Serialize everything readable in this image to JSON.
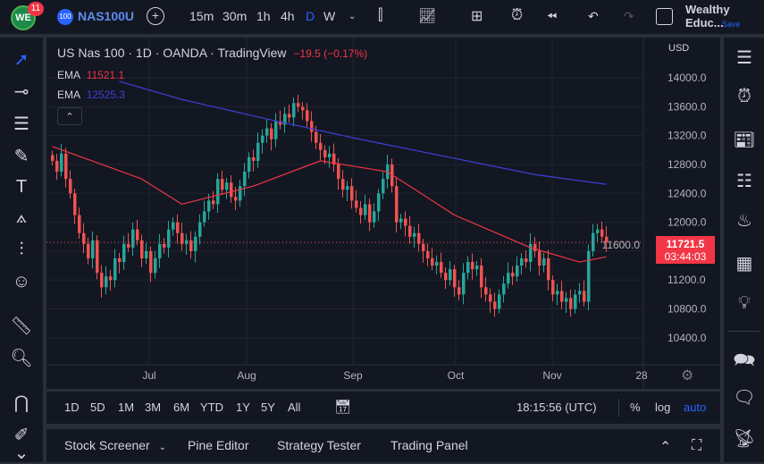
{
  "topbar": {
    "logo": "WE",
    "badge": "11",
    "symbol_icon": "100",
    "symbol": "NAS100U",
    "intervals": [
      "15m",
      "30m",
      "1h",
      "4h",
      "D",
      "W"
    ],
    "active_interval": "D",
    "layout_name": "Wealthy Educ...",
    "save": "Save"
  },
  "legend": {
    "title": "US Nas 100 · 1D · OANDA · TradingView",
    "change": "−19.5 (−0.17%)",
    "ema1_label": "EMA",
    "ema1_value": "11521.1",
    "ema2_label": "EMA",
    "ema2_value": "12525.3"
  },
  "price_axis": {
    "currency": "USD",
    "ticks": [
      "14000.0",
      "13600.0",
      "13200.0",
      "12800.0",
      "12400.0",
      "12000.0",
      "11600.0",
      "11200.0",
      "10800.0",
      "10400.0"
    ],
    "last_price": "11721.5",
    "countdown": "03:44:03"
  },
  "time_axis": {
    "labels": [
      "Jul",
      "Aug",
      "Sep",
      "Oct",
      "Nov",
      "28"
    ]
  },
  "range_bar": {
    "ranges": [
      "1D",
      "5D",
      "1M",
      "3M",
      "6M",
      "YTD",
      "1Y",
      "5Y",
      "All"
    ],
    "clock": "18:15:56 (UTC)",
    "percent": "%",
    "log": "log",
    "auto": "auto"
  },
  "bottom_tabs": [
    "Stock Screener",
    "Pine Editor",
    "Strategy Tester",
    "Trading Panel"
  ],
  "colors": {
    "up": "#26a69a",
    "down": "#ef5350",
    "ema1": "#f23645",
    "ema2": "#3f3fd8",
    "accent": "#2962ff"
  },
  "chart_data": {
    "type": "candlestick",
    "ylim": [
      10200,
      14400
    ],
    "y_ticks": [
      14000,
      13600,
      13200,
      12800,
      12400,
      12000,
      11600,
      11200,
      10800,
      10400
    ],
    "closes": [
      12850,
      12700,
      12950,
      12600,
      12400,
      12100,
      11850,
      11700,
      11500,
      11750,
      11300,
      11100,
      11250,
      11200,
      11500,
      11450,
      11700,
      11650,
      11900,
      11750,
      11500,
      11600,
      11300,
      11500,
      11700,
      11650,
      11900,
      12000,
      11850,
      11700,
      11750,
      11600,
      11800,
      12000,
      12150,
      12300,
      12250,
      12600,
      12450,
      12550,
      12350,
      12300,
      12500,
      12700,
      12900,
      12850,
      13100,
      13200,
      13300,
      13150,
      13400,
      13350,
      13500,
      13450,
      13650,
      13600,
      13550,
      13400,
      13250,
      13100,
      13000,
      12900,
      12950,
      12800,
      12600,
      12450,
      12500,
      12300,
      12200,
      12100,
      12250,
      12000,
      12150,
      12400,
      12600,
      12800,
      12500,
      12000,
      12050,
      11950,
      11800,
      11850,
      11700,
      11600,
      11500,
      11400,
      11450,
      11300,
      11200,
      11350,
      11100,
      11000,
      11300,
      11450,
      11350,
      11400,
      11100,
      11000,
      10900,
      10800,
      11000,
      11150,
      11300,
      11250,
      11400,
      11500,
      11450,
      11700,
      11600,
      11400,
      11500,
      11200,
      11000,
      11050,
      10900,
      10950,
      10800,
      11000,
      11050,
      10900,
      11600,
      11850,
      11900,
      11800,
      11721.5
    ],
    "ema1": [
      [
        0,
        13050
      ],
      [
        20,
        12600
      ],
      [
        29,
        12250
      ],
      [
        45,
        12500
      ],
      [
        60,
        12850
      ],
      [
        75,
        12700
      ],
      [
        90,
        12100
      ],
      [
        107,
        11650
      ],
      [
        118,
        11450
      ],
      [
        124,
        11521.1
      ]
    ],
    "ema2": [
      [
        15,
        13950
      ],
      [
        29,
        13700
      ],
      [
        48,
        13430
      ],
      [
        68,
        13160
      ],
      [
        88,
        12910
      ],
      [
        108,
        12660
      ],
      [
        124,
        12525.3
      ]
    ]
  }
}
